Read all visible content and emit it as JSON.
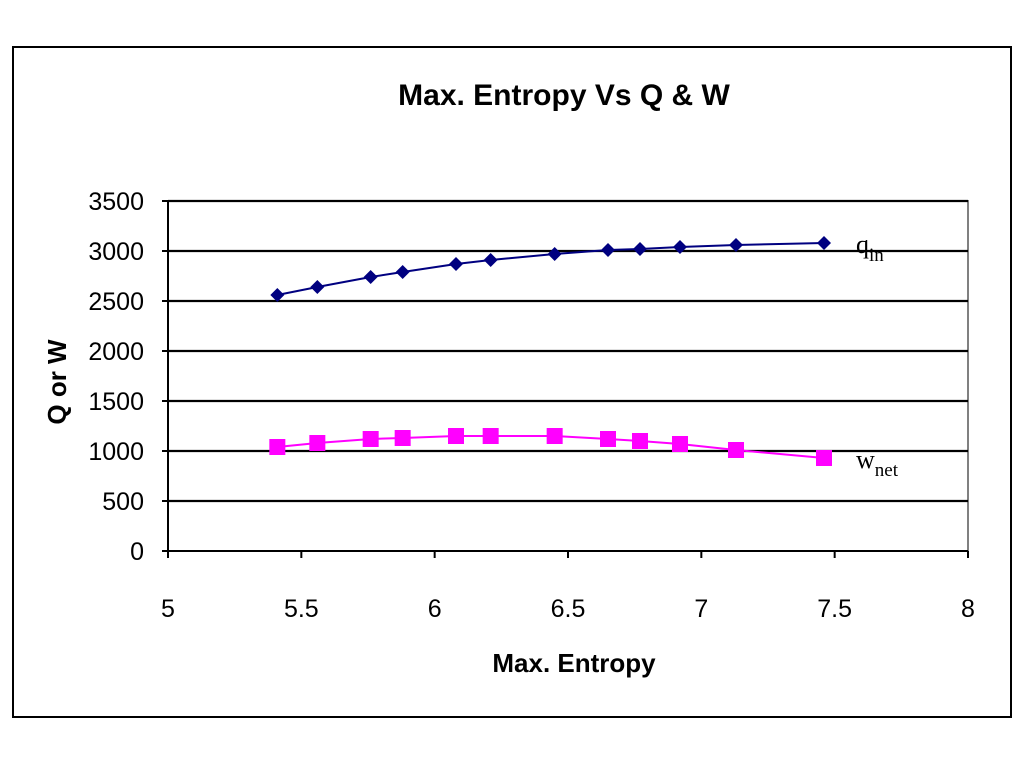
{
  "chart_data": {
    "type": "line",
    "title": "Max. Entropy Vs Q & W",
    "xlabel": "Max. Entropy",
    "ylabel": "Q or W",
    "xlim": [
      5,
      8
    ],
    "ylim": [
      0,
      3500
    ],
    "x_ticks": [
      "5",
      "5.5",
      "6",
      "6.5",
      "7",
      "7.5",
      "8"
    ],
    "y_ticks": [
      "0",
      "500",
      "1000",
      "1500",
      "2000",
      "2500",
      "3000",
      "3500"
    ],
    "grid": true,
    "series": [
      {
        "name": "q",
        "subscript": "in",
        "color": "#000080",
        "marker": "diamond",
        "x": [
          5.41,
          5.56,
          5.76,
          5.88,
          6.08,
          6.21,
          6.45,
          6.65,
          6.77,
          6.92,
          7.13,
          7.46
        ],
        "y": [
          2560,
          2640,
          2740,
          2790,
          2870,
          2910,
          2970,
          3010,
          3020,
          3040,
          3060,
          3080
        ]
      },
      {
        "name": "w",
        "subscript": "net",
        "color": "#ff00ff",
        "marker": "square",
        "x": [
          5.41,
          5.56,
          5.76,
          5.88,
          6.08,
          6.21,
          6.45,
          6.65,
          6.77,
          6.92,
          7.13,
          7.46
        ],
        "y": [
          1040,
          1080,
          1120,
          1130,
          1150,
          1150,
          1150,
          1120,
          1100,
          1070,
          1010,
          930
        ]
      }
    ]
  }
}
